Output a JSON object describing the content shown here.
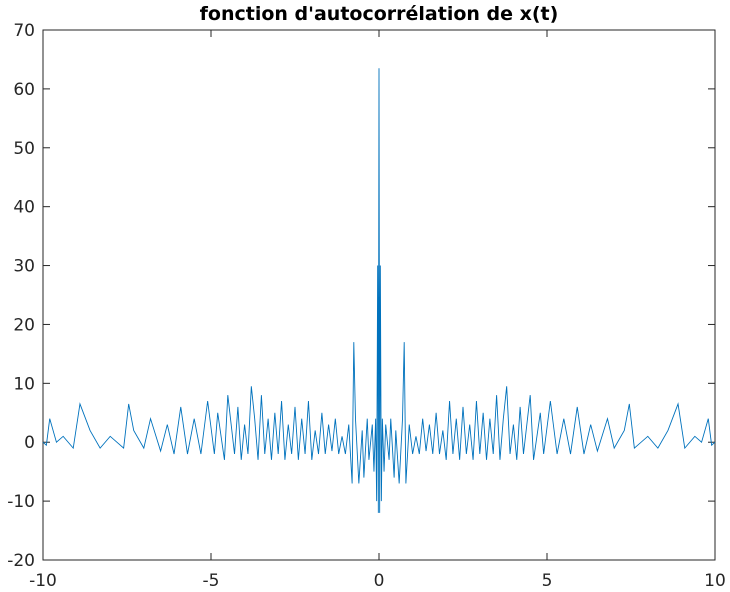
{
  "chart_data": {
    "type": "line",
    "title": "fonction d'autocorrélation de x(t)",
    "x": [
      -10,
      -9.9,
      -9.8,
      -9.6,
      -9.4,
      -9.1,
      -8.9,
      -8.6,
      -8.3,
      -8.0,
      -7.6,
      -7.45,
      -7.3,
      -7.0,
      -6.8,
      -6.5,
      -6.3,
      -6.1,
      -5.9,
      -5.7,
      -5.5,
      -5.3,
      -5.1,
      -4.9,
      -4.8,
      -4.6,
      -4.5,
      -4.3,
      -4.2,
      -4.1,
      -4.0,
      -3.9,
      -3.8,
      -3.7,
      -3.6,
      -3.5,
      -3.4,
      -3.3,
      -3.2,
      -3.1,
      -3.0,
      -2.9,
      -2.8,
      -2.7,
      -2.6,
      -2.5,
      -2.4,
      -2.3,
      -2.2,
      -2.1,
      -2.0,
      -1.9,
      -1.8,
      -1.7,
      -1.6,
      -1.5,
      -1.4,
      -1.3,
      -1.2,
      -1.1,
      -1.0,
      -0.9,
      -0.8,
      -0.75,
      -0.7,
      -0.6,
      -0.5,
      -0.45,
      -0.35,
      -0.3,
      -0.2,
      -0.15,
      -0.1,
      -0.07,
      -0.04,
      -0.02,
      0,
      0.02,
      0.04,
      0.07,
      0.1,
      0.15,
      0.2,
      0.3,
      0.35,
      0.45,
      0.5,
      0.6,
      0.7,
      0.75,
      0.8,
      0.9,
      1.0,
      1.1,
      1.2,
      1.3,
      1.4,
      1.5,
      1.6,
      1.7,
      1.8,
      1.9,
      2.0,
      2.1,
      2.2,
      2.3,
      2.4,
      2.5,
      2.6,
      2.7,
      2.8,
      2.9,
      3.0,
      3.1,
      3.2,
      3.3,
      3.4,
      3.5,
      3.6,
      3.7,
      3.8,
      3.9,
      4.0,
      4.1,
      4.2,
      4.3,
      4.5,
      4.6,
      4.8,
      4.9,
      5.1,
      5.3,
      5.5,
      5.7,
      5.9,
      6.1,
      6.3,
      6.5,
      6.8,
      7.0,
      7.3,
      7.45,
      7.6,
      8.0,
      8.3,
      8.6,
      8.9,
      9.1,
      9.4,
      9.6,
      9.8,
      9.9,
      10
    ],
    "values": [
      0,
      -0.5,
      4,
      0,
      1,
      -1,
      6.5,
      2,
      -1,
      1,
      -1,
      6.5,
      2,
      -1,
      4,
      -1.5,
      3,
      -2,
      6,
      -2,
      4,
      -2,
      7,
      -2,
      5,
      -3,
      8,
      -2,
      6,
      -3,
      3,
      -2,
      9.5,
      4,
      -3,
      8,
      -2,
      4,
      -3,
      5,
      -2,
      7,
      -3,
      3,
      -2,
      6,
      -3,
      4,
      -2,
      7,
      -3,
      2,
      -2,
      5,
      -2,
      3,
      -1.5,
      4,
      -2,
      1,
      -2,
      3,
      -7,
      17,
      4,
      -7,
      2,
      -6,
      4,
      -3,
      3,
      -5,
      4,
      -10,
      30,
      -12,
      63.5,
      -12,
      30,
      -10,
      4,
      -5,
      3,
      -3,
      4,
      -6,
      2,
      -7,
      4,
      17,
      -7,
      3,
      -2,
      1,
      -2,
      4,
      -1.5,
      3,
      -2,
      5,
      -2,
      2,
      -3,
      7,
      -2,
      4,
      -3,
      6,
      -2,
      3,
      -3,
      7,
      -2,
      5,
      -3,
      4,
      -2,
      8,
      -3,
      4,
      9.5,
      -2,
      3,
      -3,
      6,
      -2,
      8,
      -3,
      5,
      -2,
      7,
      -2,
      4,
      -2,
      6,
      -2,
      3,
      -1.5,
      4,
      -1,
      2,
      6.5,
      -1,
      1,
      -1,
      2,
      6.5,
      -1,
      1,
      0,
      4,
      -0.5,
      0
    ],
    "color": "#0072bd",
    "xlim": [
      -10,
      10
    ],
    "xticks": [
      -10,
      -5,
      0,
      5,
      10
    ],
    "ylim": [
      -20,
      70
    ],
    "yticks": [
      -20,
      -10,
      0,
      10,
      20,
      30,
      40,
      50,
      60,
      70
    ],
    "grid": false
  }
}
